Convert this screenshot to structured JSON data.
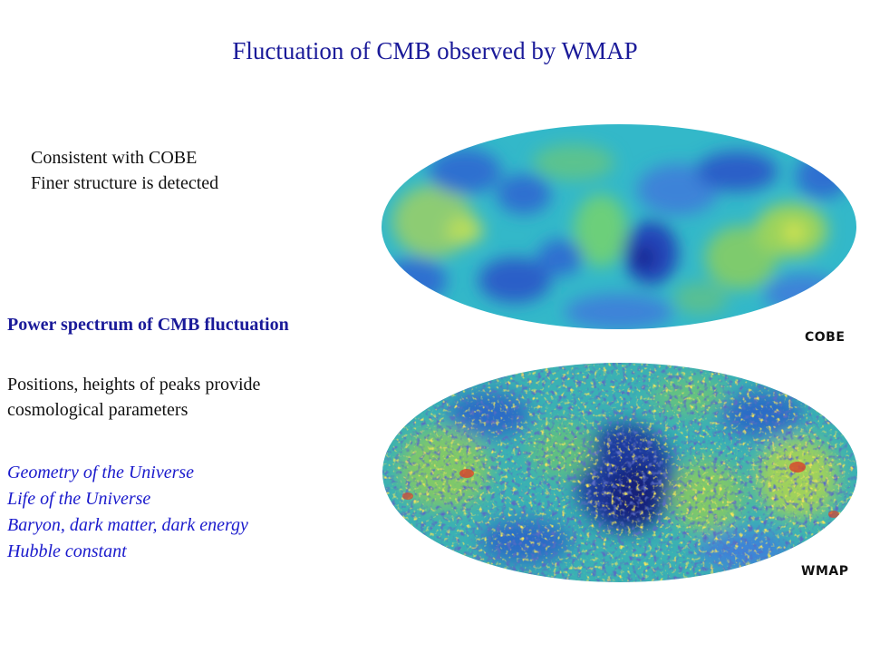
{
  "slide": {
    "title": "Fluctuation of CMB observed by WMAP"
  },
  "cobe_notes": {
    "lines": [
      "Consistent with COBE",
      "Finer structure is detected"
    ]
  },
  "spectrum": {
    "heading": "Power spectrum of CMB fluctuation",
    "description_lines": [
      "Positions, heights of peaks provide",
      "cosmological parameters"
    ],
    "parameters": [
      "Geometry of the Universe",
      "Life of the Universe",
      "Baryon, dark matter, dark energy",
      "Hubble constant"
    ]
  },
  "maps": {
    "cobe_label": "COBE",
    "wmap_label": "WMAP"
  },
  "colors": {
    "title": "#1a1a99",
    "heading": "#1a1a99",
    "parameter_text": "#1a1acc",
    "body_text": "#111111"
  }
}
